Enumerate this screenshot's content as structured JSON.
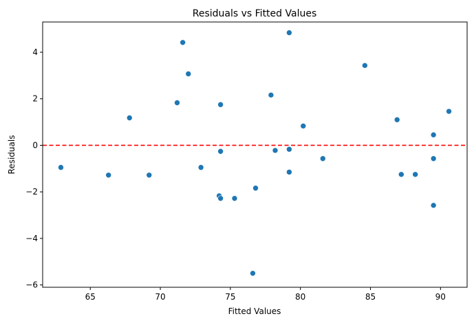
{
  "chart_data": {
    "type": "scatter",
    "title": "Residuals vs Fitted Values",
    "xlabel": "Fitted Values",
    "ylabel": "Residuals",
    "xlim": [
      61.6,
      91.9
    ],
    "ylim": [
      -6.1,
      5.3
    ],
    "xticks": [
      65,
      70,
      75,
      80,
      85,
      90
    ],
    "yticks": [
      -6,
      -4,
      -2,
      0,
      2,
      4
    ],
    "grid": false,
    "point_color": "#1f77b4",
    "reference_line": {
      "y": 0,
      "color": "#ff0000",
      "style": "dashed"
    },
    "points": [
      {
        "x": 62.9,
        "y": -0.95
      },
      {
        "x": 66.3,
        "y": -1.28
      },
      {
        "x": 67.8,
        "y": 1.18
      },
      {
        "x": 69.2,
        "y": -1.28
      },
      {
        "x": 71.2,
        "y": 1.83
      },
      {
        "x": 71.6,
        "y": 4.42
      },
      {
        "x": 72.0,
        "y": 3.07
      },
      {
        "x": 72.9,
        "y": -0.95
      },
      {
        "x": 74.2,
        "y": -2.17
      },
      {
        "x": 74.3,
        "y": -2.28
      },
      {
        "x": 74.3,
        "y": 1.75
      },
      {
        "x": 74.3,
        "y": -0.26
      },
      {
        "x": 75.3,
        "y": -2.28
      },
      {
        "x": 76.6,
        "y": -5.5
      },
      {
        "x": 76.8,
        "y": -1.84
      },
      {
        "x": 77.9,
        "y": 2.16
      },
      {
        "x": 78.2,
        "y": -0.22
      },
      {
        "x": 79.2,
        "y": 4.84
      },
      {
        "x": 79.2,
        "y": -0.17
      },
      {
        "x": 79.2,
        "y": -1.15
      },
      {
        "x": 80.2,
        "y": 0.83
      },
      {
        "x": 81.6,
        "y": -0.57
      },
      {
        "x": 84.6,
        "y": 3.43
      },
      {
        "x": 86.9,
        "y": 1.1
      },
      {
        "x": 87.2,
        "y": -1.25
      },
      {
        "x": 88.2,
        "y": -1.25
      },
      {
        "x": 89.5,
        "y": 0.45
      },
      {
        "x": 89.5,
        "y": -0.57
      },
      {
        "x": 89.5,
        "y": -2.58
      },
      {
        "x": 90.6,
        "y": 1.46
      }
    ]
  }
}
